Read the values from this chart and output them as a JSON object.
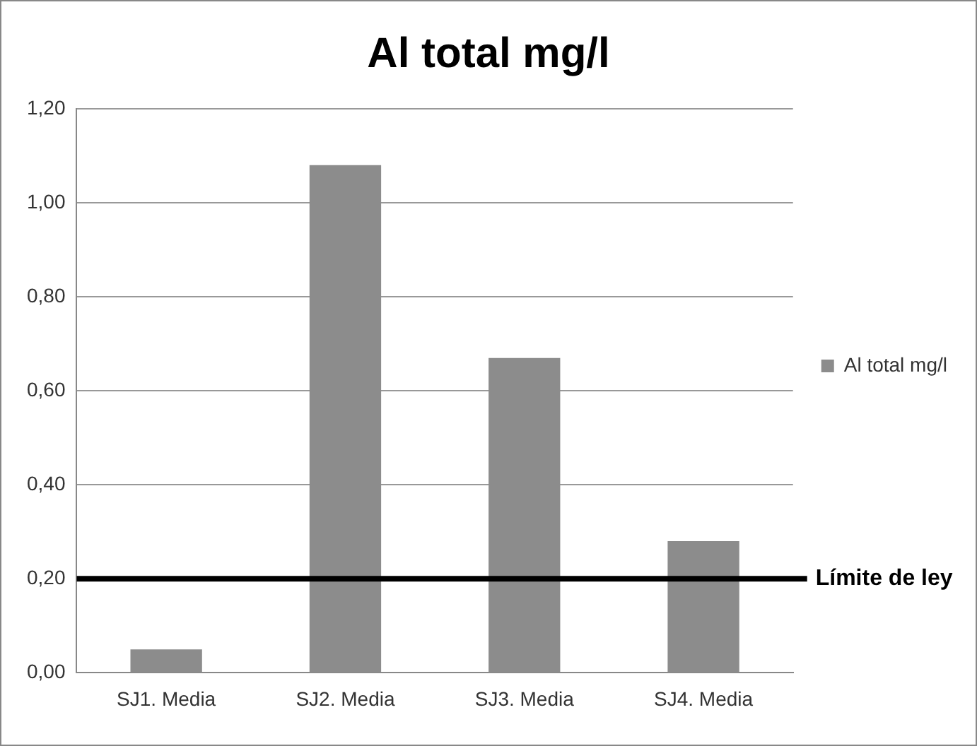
{
  "chart_data": {
    "type": "bar",
    "title": "Al total mg/l",
    "categories": [
      "SJ1. Media",
      "SJ2. Media",
      "SJ3. Media",
      "SJ4. Media"
    ],
    "series": [
      {
        "name": "Al total mg/l",
        "color": "#8c8c8c",
        "values": [
          0.05,
          1.08,
          0.67,
          0.28
        ]
      }
    ],
    "ylim": [
      0,
      1.2
    ],
    "yticks": [
      {
        "value": 0,
        "label": "0,00"
      },
      {
        "value": 0.2,
        "label": "0,20"
      },
      {
        "value": 0.4,
        "label": "0,40"
      },
      {
        "value": 0.6,
        "label": "0,60"
      },
      {
        "value": 0.8,
        "label": "0,80"
      },
      {
        "value": 1,
        "label": "1,00"
      },
      {
        "value": 1.2,
        "label": "1,20"
      }
    ],
    "ref_lines": [
      {
        "axis": "y",
        "value": 0.2,
        "label": "Límite de ley",
        "color": "#000000"
      }
    ],
    "grid": "y",
    "legend": "right"
  }
}
